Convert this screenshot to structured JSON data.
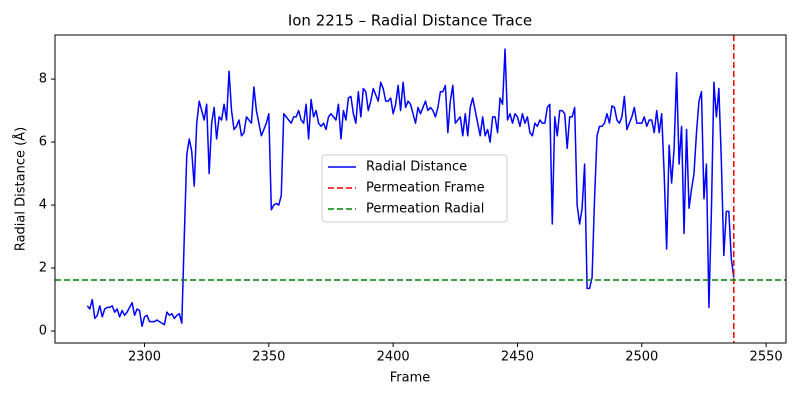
{
  "chart_data": {
    "type": "line",
    "title": "Ion 2215 – Radial Distance Trace",
    "x_label": "Frame",
    "y_label": "Radial Distance (Å)",
    "xlim": [
      2264,
      2558
    ],
    "ylim": [
      -0.38,
      9.4
    ],
    "xticks": [
      2300,
      2350,
      2400,
      2450,
      2500,
      2550
    ],
    "yticks": [
      0,
      2,
      4,
      6,
      8
    ],
    "x": [
      2277,
      2278,
      2279,
      2280,
      2281,
      2282,
      2283,
      2284,
      2285,
      2286,
      2287,
      2288,
      2289,
      2290,
      2291,
      2292,
      2293,
      2294,
      2295,
      2296,
      2297,
      2298,
      2299,
      2300,
      2301,
      2302,
      2303,
      2304,
      2305,
      2306,
      2307,
      2308,
      2309,
      2310,
      2311,
      2312,
      2313,
      2314,
      2315,
      2316,
      2317,
      2318,
      2319,
      2320,
      2321,
      2322,
      2323,
      2324,
      2325,
      2326,
      2327,
      2328,
      2329,
      2330,
      2331,
      2332,
      2333,
      2334,
      2335,
      2336,
      2337,
      2338,
      2339,
      2340,
      2341,
      2342,
      2343,
      2344,
      2345,
      2346,
      2347,
      2348,
      2349,
      2350,
      2351,
      2352,
      2353,
      2354,
      2355,
      2356,
      2357,
      2358,
      2359,
      2360,
      2361,
      2362,
      2363,
      2364,
      2365,
      2366,
      2367,
      2368,
      2369,
      2370,
      2371,
      2372,
      2373,
      2374,
      2375,
      2376,
      2377,
      2378,
      2379,
      2380,
      2381,
      2382,
      2383,
      2384,
      2385,
      2386,
      2387,
      2388,
      2389,
      2390,
      2391,
      2392,
      2393,
      2394,
      2395,
      2396,
      2397,
      2398,
      2399,
      2400,
      2401,
      2402,
      2403,
      2404,
      2405,
      2406,
      2407,
      2408,
      2409,
      2410,
      2411,
      2412,
      2413,
      2414,
      2415,
      2416,
      2417,
      2418,
      2419,
      2420,
      2421,
      2422,
      2423,
      2424,
      2425,
      2426,
      2427,
      2428,
      2429,
      2430,
      2431,
      2432,
      2433,
      2434,
      2435,
      2436,
      2437,
      2438,
      2439,
      2440,
      2441,
      2442,
      2443,
      2444,
      2445,
      2446,
      2447,
      2448,
      2449,
      2450,
      2451,
      2452,
      2453,
      2454,
      2455,
      2456,
      2457,
      2458,
      2459,
      2460,
      2461,
      2462,
      2463,
      2464,
      2465,
      2466,
      2467,
      2468,
      2469,
      2470,
      2471,
      2472,
      2473,
      2474,
      2475,
      2476,
      2477,
      2478,
      2479,
      2480,
      2481,
      2482,
      2483,
      2484,
      2485,
      2486,
      2487,
      2488,
      2489,
      2490,
      2491,
      2492,
      2493,
      2494,
      2495,
      2496,
      2497,
      2498,
      2499,
      2500,
      2501,
      2502,
      2503,
      2504,
      2505,
      2506,
      2507,
      2508,
      2509,
      2510,
      2511,
      2512,
      2513,
      2514,
      2515,
      2516,
      2517,
      2518,
      2519,
      2520,
      2521,
      2522,
      2523,
      2524,
      2525,
      2526,
      2527,
      2528,
      2529,
      2530,
      2531,
      2532,
      2533,
      2534,
      2535,
      2536,
      2537
    ],
    "series": [
      {
        "name": "Radial Distance",
        "color": "#0000ff",
        "values": [
          0.8,
          0.7,
          1.0,
          0.4,
          0.5,
          0.8,
          0.45,
          0.7,
          0.75,
          0.75,
          0.8,
          0.6,
          0.7,
          0.45,
          0.65,
          0.5,
          0.6,
          0.75,
          0.9,
          0.5,
          0.7,
          0.65,
          0.15,
          0.45,
          0.5,
          0.3,
          0.3,
          0.3,
          0.35,
          0.3,
          0.25,
          0.2,
          0.6,
          0.5,
          0.55,
          0.4,
          0.5,
          0.55,
          0.25,
          3.0,
          5.6,
          6.1,
          5.7,
          4.6,
          6.6,
          7.3,
          7.0,
          6.7,
          7.2,
          5.0,
          6.6,
          7.1,
          6.1,
          6.8,
          6.7,
          7.2,
          6.7,
          8.25,
          7.0,
          6.4,
          6.5,
          6.7,
          6.2,
          6.3,
          6.8,
          6.7,
          6.6,
          7.75,
          7.0,
          6.6,
          6.2,
          6.4,
          6.6,
          6.9,
          3.85,
          4.0,
          4.05,
          4.0,
          4.3,
          6.9,
          6.8,
          6.7,
          6.6,
          6.8,
          6.8,
          7.0,
          6.7,
          6.6,
          7.2,
          6.1,
          7.35,
          6.8,
          7.0,
          6.6,
          6.5,
          6.6,
          6.4,
          6.8,
          6.9,
          6.8,
          6.7,
          7.2,
          6.1,
          7.0,
          6.7,
          7.4,
          7.45,
          6.9,
          6.6,
          7.6,
          6.8,
          7.7,
          7.6,
          7.0,
          7.3,
          7.7,
          7.5,
          7.3,
          7.9,
          7.7,
          7.3,
          7.3,
          7.4,
          6.9,
          7.2,
          7.8,
          7.0,
          7.9,
          7.1,
          7.3,
          7.2,
          6.9,
          6.6,
          7.1,
          6.9,
          7.1,
          7.3,
          7.0,
          7.1,
          7.0,
          6.8,
          7.1,
          7.6,
          7.6,
          7.8,
          6.3,
          7.3,
          7.8,
          6.6,
          6.7,
          6.8,
          6.2,
          6.9,
          6.2,
          7.1,
          7.4,
          7.0,
          6.6,
          6.2,
          6.8,
          6.2,
          6.4,
          6.0,
          6.8,
          6.8,
          6.3,
          7.4,
          7.2,
          8.95,
          6.7,
          6.9,
          6.6,
          6.9,
          6.8,
          6.5,
          6.9,
          6.6,
          6.8,
          6.3,
          6.2,
          6.6,
          6.5,
          6.7,
          6.6,
          6.6,
          7.1,
          7.2,
          3.4,
          6.8,
          6.2,
          7.0,
          7.0,
          6.9,
          5.8,
          6.8,
          6.8,
          7.1,
          4.0,
          3.4,
          3.9,
          5.3,
          1.35,
          1.35,
          1.7,
          4.2,
          6.2,
          6.5,
          6.5,
          6.6,
          6.9,
          6.6,
          7.15,
          7.1,
          6.7,
          6.6,
          6.8,
          7.45,
          6.4,
          6.6,
          6.8,
          7.1,
          6.6,
          6.6,
          6.6,
          6.8,
          6.5,
          6.7,
          6.7,
          6.3,
          7.0,
          6.3,
          6.9,
          5.0,
          2.6,
          5.9,
          4.7,
          5.8,
          8.2,
          5.3,
          6.5,
          3.1,
          6.4,
          3.9,
          4.5,
          5.0,
          6.3,
          7.3,
          7.6,
          4.2,
          5.3,
          0.75,
          3.8,
          7.9,
          6.8,
          7.7,
          5.4,
          2.4,
          3.8,
          3.8,
          2.3,
          1.7
        ]
      }
    ],
    "reference_lines": [
      {
        "name": "Permeation Frame",
        "color": "#ff0000",
        "orientation": "vertical",
        "value": 2537
      },
      {
        "name": "Permeation Radial",
        "color": "#008000",
        "orientation": "horizontal",
        "value": 1.62
      }
    ]
  }
}
